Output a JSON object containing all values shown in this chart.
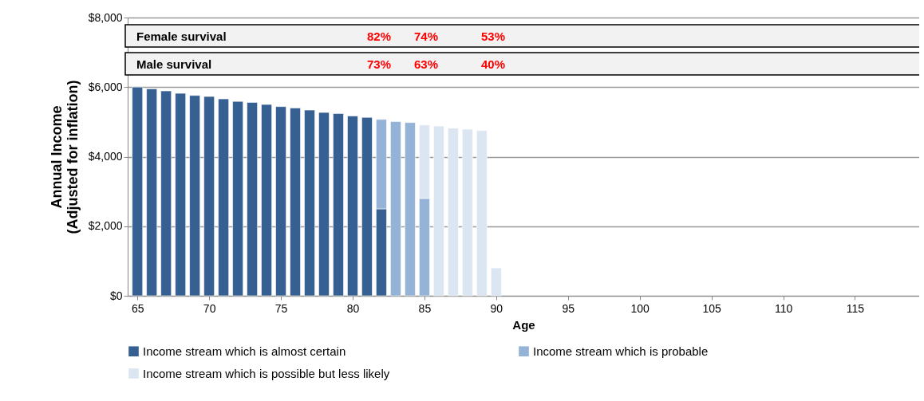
{
  "chart_data": {
    "type": "bar",
    "stacked": true,
    "xlabel": "Age",
    "ylabel": "Annual Income\n(Adjusted for inflation)",
    "x": [
      65,
      66,
      67,
      68,
      69,
      70,
      71,
      72,
      73,
      74,
      75,
      76,
      77,
      78,
      79,
      80,
      81,
      82,
      83,
      84,
      85,
      86,
      87,
      88,
      89,
      90
    ],
    "series": [
      {
        "name": "Income stream which is almost certain",
        "color": "#376092",
        "values": [
          6000,
          5950,
          5890,
          5820,
          5760,
          5730,
          5660,
          5590,
          5560,
          5500,
          5440,
          5400,
          5340,
          5270,
          5240,
          5170,
          5130,
          2500,
          null,
          null,
          null,
          null,
          null,
          null,
          null,
          null
        ]
      },
      {
        "name": "Income stream which is probable",
        "color": "#95b3d7",
        "values": [
          null,
          null,
          null,
          null,
          null,
          null,
          null,
          null,
          null,
          null,
          null,
          null,
          null,
          null,
          null,
          null,
          null,
          2570,
          5010,
          4980,
          2800,
          null,
          null,
          null,
          null,
          null
        ]
      },
      {
        "name": "Income stream which is possible but less likely",
        "color": "#dce6f2",
        "values": [
          null,
          null,
          null,
          null,
          null,
          null,
          null,
          null,
          null,
          null,
          null,
          null,
          null,
          null,
          null,
          null,
          null,
          null,
          null,
          null,
          2110,
          4880,
          4820,
          4790,
          4750,
          800
        ]
      }
    ],
    "xlim": [
      64.6,
      119.2
    ],
    "xticks": [
      65,
      70,
      75,
      80,
      85,
      90,
      95,
      100,
      105,
      110,
      115
    ],
    "ylim": [
      0,
      8000
    ],
    "yticks": [
      {
        "value": 0,
        "label": "$0"
      },
      {
        "value": 2000,
        "label": "$2,000"
      },
      {
        "value": 4000,
        "label": "$4,000"
      },
      {
        "value": 6000,
        "label": "$6,000"
      },
      {
        "value": 8000,
        "label": "$8,000"
      }
    ],
    "grid": "y",
    "legend": "bottom",
    "annotations": [
      "Female survival",
      "82%",
      "74%",
      "53%",
      "Male survival",
      "73%",
      "63%",
      "40%"
    ]
  }
}
